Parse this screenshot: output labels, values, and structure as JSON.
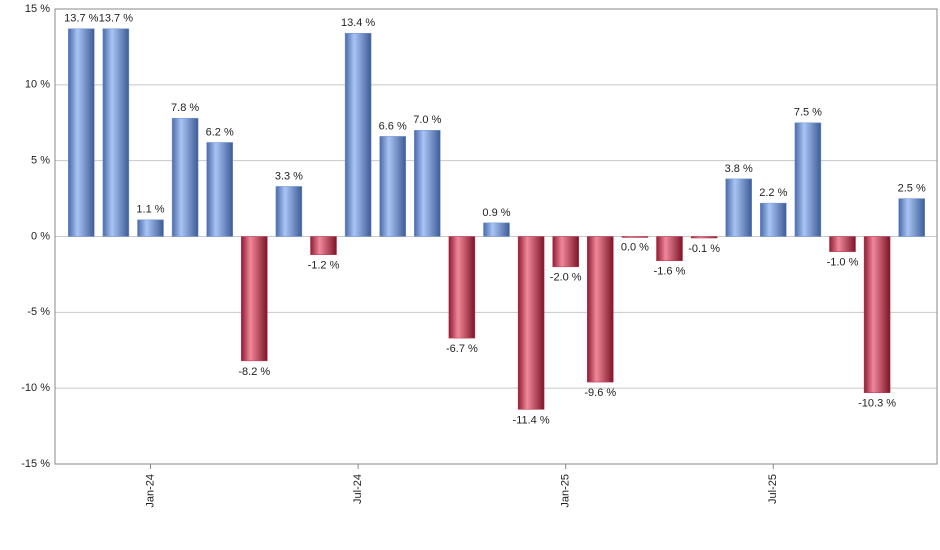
{
  "chart_data": {
    "type": "bar",
    "categories": [
      null,
      null,
      "Jan-24",
      null,
      null,
      null,
      null,
      null,
      "Jul-24",
      null,
      null,
      null,
      null,
      null,
      "Jan-25",
      null,
      null,
      null,
      null,
      null,
      "Jul-25",
      null,
      null,
      null,
      null
    ],
    "values": [
      13.7,
      13.7,
      1.1,
      7.8,
      6.2,
      -8.2,
      3.3,
      -1.2,
      13.4,
      6.6,
      7.0,
      -6.7,
      0.9,
      -11.4,
      -2.0,
      -9.6,
      0.0,
      -1.6,
      -0.1,
      3.8,
      2.2,
      7.5,
      -1.0,
      -10.3,
      2.5
    ],
    "value_labels": [
      "13.7 %",
      "13.7 %",
      "1.1 %",
      "7.8 %",
      "6.2 %",
      "-8.2 %",
      "3.3 %",
      "-1.2 %",
      "13.4 %",
      "6.6 %",
      "7.0 %",
      "-6.7 %",
      "0.9 %",
      "-11.4 %",
      "-2.0 %",
      "-9.6 %",
      "0.0 %",
      "-1.6 %",
      "-0.1 %",
      "3.8 %",
      "2.2 %",
      "7.5 %",
      "-1.0 %",
      "-10.3 %",
      "2.5 %"
    ],
    "positive_color": "#6f93d8",
    "negative_color": "#c0304f",
    "ylim": [
      -15,
      15
    ],
    "yticks": [
      {
        "value": -15,
        "label": "-15 %"
      },
      {
        "value": -10,
        "label": "-10 %"
      },
      {
        "value": -5,
        "label": "-5 %"
      },
      {
        "value": 0,
        "label": "0 %"
      },
      {
        "value": 5,
        "label": "5 %"
      },
      {
        "value": 10,
        "label": "10 %"
      },
      {
        "value": 15,
        "label": "15 %"
      }
    ],
    "grid": true
  }
}
